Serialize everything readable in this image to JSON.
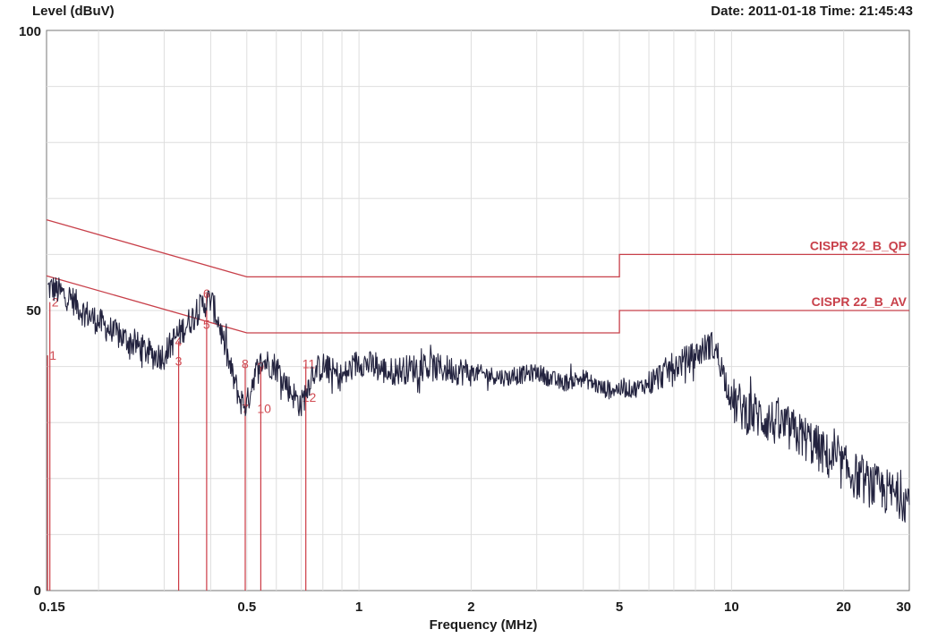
{
  "header": {
    "ylabel": "Level (dBuV)",
    "datetime": "Date: 2011-01-18  Time: 21:45:43"
  },
  "chart_data": {
    "type": "line",
    "title": "",
    "xlabel": "Frequency (MHz)",
    "ylabel": "Level (dBuV)",
    "xscale": "log",
    "xlim": [
      0.145,
      30
    ],
    "ylim": [
      0,
      100
    ],
    "grid": true,
    "x_ticks": [
      {
        "v": 0.15,
        "label": "0.15"
      },
      {
        "v": 0.5,
        "label": "0.5"
      },
      {
        "v": 1,
        "label": "1"
      },
      {
        "v": 2,
        "label": "2"
      },
      {
        "v": 5,
        "label": "5"
      },
      {
        "v": 10,
        "label": "10"
      },
      {
        "v": 20,
        "label": "20"
      },
      {
        "v": 30,
        "label": "30"
      }
    ],
    "y_ticks": [
      {
        "v": 0,
        "label": "0"
      },
      {
        "v": 50,
        "label": "50"
      },
      {
        "v": 100,
        "label": "100"
      }
    ],
    "limits": [
      {
        "name": "CISPR 22_B_QP",
        "color": "#c8404a",
        "points": [
          [
            0.145,
            66.2
          ],
          [
            0.5,
            56
          ],
          [
            5,
            56
          ],
          [
            5,
            60
          ],
          [
            30,
            60
          ]
        ]
      },
      {
        "name": "CISPR 22_B_AV",
        "color": "#c8404a",
        "points": [
          [
            0.145,
            56.2
          ],
          [
            0.5,
            46
          ],
          [
            5,
            46
          ],
          [
            5,
            50
          ],
          [
            30,
            50
          ]
        ]
      }
    ],
    "series": [
      {
        "color": "#23233f",
        "points": [
          [
            0.15,
            54
          ],
          [
            0.16,
            53
          ],
          [
            0.17,
            52
          ],
          [
            0.18,
            50
          ],
          [
            0.2,
            48
          ],
          [
            0.22,
            46
          ],
          [
            0.25,
            44
          ],
          [
            0.28,
            42
          ],
          [
            0.3,
            42
          ],
          [
            0.32,
            45
          ],
          [
            0.34,
            47
          ],
          [
            0.36,
            49
          ],
          [
            0.38,
            51
          ],
          [
            0.4,
            52
          ],
          [
            0.42,
            48
          ],
          [
            0.45,
            40
          ],
          [
            0.48,
            34
          ],
          [
            0.5,
            33
          ],
          [
            0.52,
            38
          ],
          [
            0.55,
            41
          ],
          [
            0.6,
            40
          ],
          [
            0.65,
            36
          ],
          [
            0.7,
            33
          ],
          [
            0.75,
            39
          ],
          [
            0.8,
            40
          ],
          [
            0.9,
            38
          ],
          [
            1,
            41
          ],
          [
            1.2,
            39
          ],
          [
            1.5,
            40
          ],
          [
            2,
            39
          ],
          [
            2.5,
            38
          ],
          [
            3,
            39
          ],
          [
            3.5,
            37
          ],
          [
            4,
            38
          ],
          [
            4.5,
            36
          ],
          [
            5,
            36
          ],
          [
            5.5,
            36
          ],
          [
            6,
            37
          ],
          [
            7,
            40
          ],
          [
            8,
            42
          ],
          [
            8.8,
            44
          ],
          [
            9.2,
            42
          ],
          [
            10,
            34
          ],
          [
            11,
            32
          ],
          [
            12,
            31
          ],
          [
            14,
            29
          ],
          [
            16,
            27
          ],
          [
            18,
            24
          ],
          [
            20,
            22
          ],
          [
            22,
            20
          ],
          [
            25,
            18
          ],
          [
            28,
            17
          ],
          [
            30,
            16
          ]
        ]
      }
    ],
    "markers": [
      {
        "id": "1",
        "label": "1",
        "x": 0.146,
        "y": 42
      },
      {
        "id": "2",
        "label": "2",
        "x": 0.148,
        "y": 51.5
      },
      {
        "id": "3",
        "label": "3",
        "x": 0.328,
        "y": 41
      },
      {
        "id": "4",
        "label": "4",
        "x": 0.328,
        "y": 44.5
      },
      {
        "id": "5",
        "label": "5",
        "x": 0.39,
        "y": 47.5
      },
      {
        "id": "6",
        "label": "6",
        "x": 0.39,
        "y": 53
      },
      {
        "id": "7",
        "label": "7",
        "x": 0.495,
        "y": 32.5
      },
      {
        "id": "8",
        "label": "8",
        "x": 0.495,
        "y": 40.5
      },
      {
        "id": "9",
        "label": "9",
        "x": 0.545,
        "y": 40
      },
      {
        "id": "10",
        "label": "10",
        "x": 0.545,
        "y": 32.5
      },
      {
        "id": "11",
        "label": "11",
        "x": 0.72,
        "y": 40.5
      },
      {
        "id": "12",
        "label": "12",
        "x": 0.72,
        "y": 34.5
      }
    ]
  }
}
